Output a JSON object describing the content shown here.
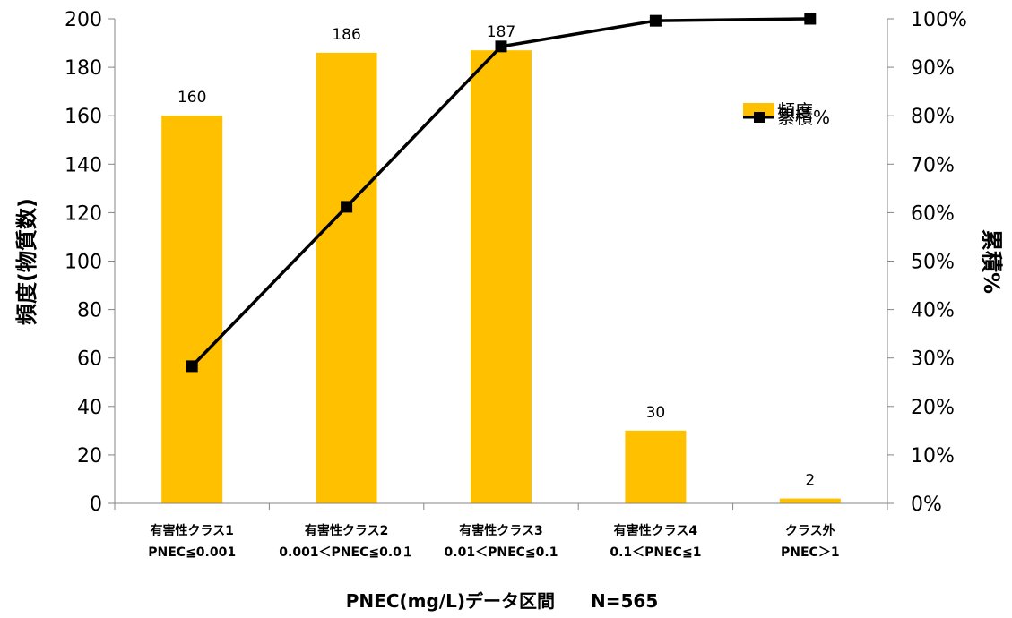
{
  "chart_data": {
    "type": "bar",
    "title": "",
    "xlabel": "PNEC(mg/L)データ区間　　N=565",
    "ylabel": "頻度(物質数)",
    "y2label": "累積%",
    "ylim": [
      0,
      200
    ],
    "y2lim": [
      0,
      100
    ],
    "yticks": [
      "0",
      "20",
      "40",
      "60",
      "80",
      "100",
      "120",
      "140",
      "160",
      "180",
      "200"
    ],
    "y2ticks": [
      "0%",
      "10%",
      "20%",
      "30%",
      "40%",
      "50%",
      "60%",
      "70%",
      "80%",
      "90%",
      "100%"
    ],
    "categories": [
      {
        "line1": "有害性クラス1",
        "line2": "PNEC≦0.001"
      },
      {
        "line1": "有害性クラス2",
        "line2": "0.001＜PNEC≦0.0１"
      },
      {
        "line1": "有害性クラス3",
        "line2": "0.01＜PNEC≦0.1"
      },
      {
        "line1": "有害性クラス4",
        "line2": "0.1＜PNEC≦1"
      },
      {
        "line1": "クラス外",
        "line2": "PNEC＞1"
      }
    ],
    "series": [
      {
        "name": "頻度",
        "kind": "bar",
        "axis": "left",
        "color": "#FFC000",
        "values": [
          160,
          186,
          187,
          30,
          2
        ],
        "labels": [
          "160",
          "186",
          "187",
          "30",
          "2"
        ]
      },
      {
        "name": "累積%",
        "kind": "line",
        "axis": "right",
        "color": "#000000",
        "marker": "square",
        "values": [
          28.3,
          61.2,
          94.3,
          99.6,
          100.0
        ]
      }
    ],
    "grid": false,
    "legend": "top-right"
  }
}
